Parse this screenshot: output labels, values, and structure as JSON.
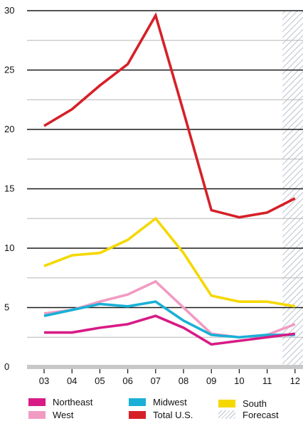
{
  "chart_data": {
    "type": "line",
    "title": "",
    "xlabel": "",
    "ylabel": "",
    "categories": [
      "03",
      "04",
      "05",
      "06",
      "07",
      "08",
      "09",
      "10",
      "11",
      "12"
    ],
    "ylim": [
      0,
      30
    ],
    "yticks": [
      0,
      5,
      10,
      15,
      20,
      25,
      30
    ],
    "grid": true,
    "legend_position": "bottom",
    "forecast": {
      "from_category": "11",
      "to_category": "12",
      "label": "Forecast"
    },
    "series": [
      {
        "name": "Total U.S.",
        "color": "#d62027",
        "values": [
          20.3,
          21.7,
          23.7,
          25.5,
          29.6,
          21.5,
          13.2,
          12.6,
          13.0,
          14.2
        ]
      },
      {
        "name": "South",
        "color": "#f5d800",
        "values": [
          8.5,
          9.4,
          9.6,
          10.7,
          12.5,
          9.6,
          6.0,
          5.5,
          5.5,
          5.1
        ]
      },
      {
        "name": "West",
        "color": "#f19bc3",
        "values": [
          4.5,
          4.8,
          5.5,
          6.1,
          7.2,
          5.0,
          2.8,
          2.5,
          2.7,
          3.6
        ]
      },
      {
        "name": "Midwest",
        "color": "#1ab0d6",
        "values": [
          4.3,
          4.8,
          5.3,
          5.1,
          5.5,
          3.9,
          2.7,
          2.5,
          2.7,
          2.7
        ]
      },
      {
        "name": "Northeast",
        "color": "#d81b86",
        "values": [
          2.9,
          2.9,
          3.3,
          3.6,
          4.3,
          3.3,
          1.9,
          2.2,
          2.5,
          2.8
        ]
      }
    ]
  },
  "legend": {
    "items": [
      {
        "label": "Northeast",
        "color": "#d81b86",
        "pattern": "solid"
      },
      {
        "label": "Midwest",
        "color": "#1ab0d6",
        "pattern": "solid"
      },
      {
        "label": "South",
        "color": "#f5d800",
        "pattern": "solid"
      },
      {
        "label": "West",
        "color": "#f19bc3",
        "pattern": "solid"
      },
      {
        "label": "Total U.S.",
        "color": "#d62027",
        "pattern": "solid"
      },
      {
        "label": "Forecast",
        "color": "#b8c3cc",
        "pattern": "hatch"
      }
    ]
  },
  "colors": {
    "gridline_major": "#1a1a1a",
    "gridline_minor": "#b5b5b5",
    "baseline": "#c8c8c8",
    "forecast_hatch": "#b8c3cc"
  }
}
